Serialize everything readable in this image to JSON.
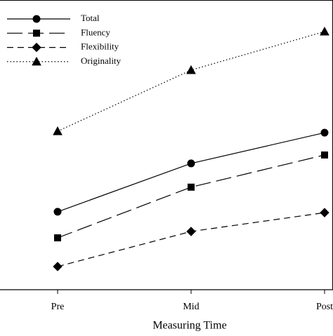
{
  "chart_data": {
    "type": "line",
    "x_label": "Measuring Time",
    "categories": [
      "Pre",
      "Mid",
      "Post"
    ],
    "ylim": [
      0,
      100
    ],
    "legend": "top-left",
    "series": [
      {
        "name": "Total",
        "color": "#000000",
        "dash": "solid",
        "marker": "circle",
        "values": [
          26.9,
          43.6,
          54.2
        ]
      },
      {
        "name": "Fluency",
        "color": "#000000",
        "dash": "long-dash",
        "marker": "square",
        "values": [
          17.9,
          35.4,
          46.5
        ]
      },
      {
        "name": "Flexibility",
        "color": "#000000",
        "dash": "dash",
        "marker": "diamond",
        "values": [
          8.0,
          20.1,
          26.6
        ]
      },
      {
        "name": "Originality",
        "color": "#000000",
        "dash": "dot",
        "marker": "triangle",
        "values": [
          54.7,
          75.8,
          89.1
        ]
      }
    ]
  }
}
